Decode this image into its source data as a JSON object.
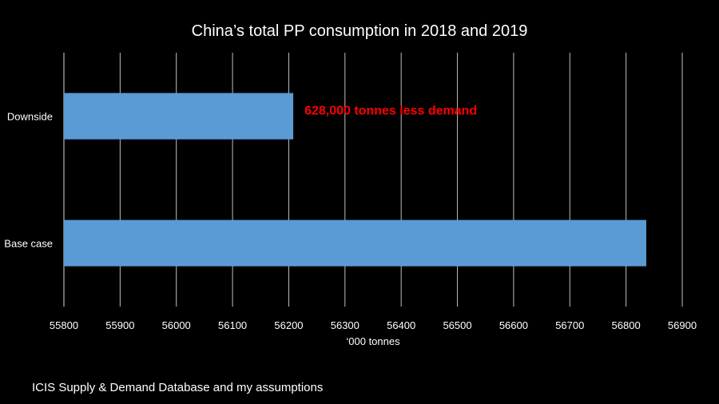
{
  "chart_data": {
    "type": "bar",
    "orientation": "horizontal",
    "title": "China’s total PP consumption in 2018 and 2019",
    "xlabel": "‘000 tonnes",
    "ylabel": "",
    "categories": [
      "Downside",
      "Base case"
    ],
    "values": [
      56208,
      56836
    ],
    "xlim": [
      55800,
      56900
    ],
    "xticks": [
      "55800",
      "55900",
      "56000",
      "56100",
      "56200",
      "56300",
      "56400",
      "56500",
      "56600",
      "56700",
      "56800",
      "56900"
    ],
    "grid": "vertical",
    "legend": "none",
    "bar_color": "#5B9BD5",
    "annotation": {
      "text": "628,000 tonnes less demand",
      "color": "#FF0000",
      "category": "Downside"
    }
  },
  "source": "ICIS Supply & Demand Database and my assumptions"
}
